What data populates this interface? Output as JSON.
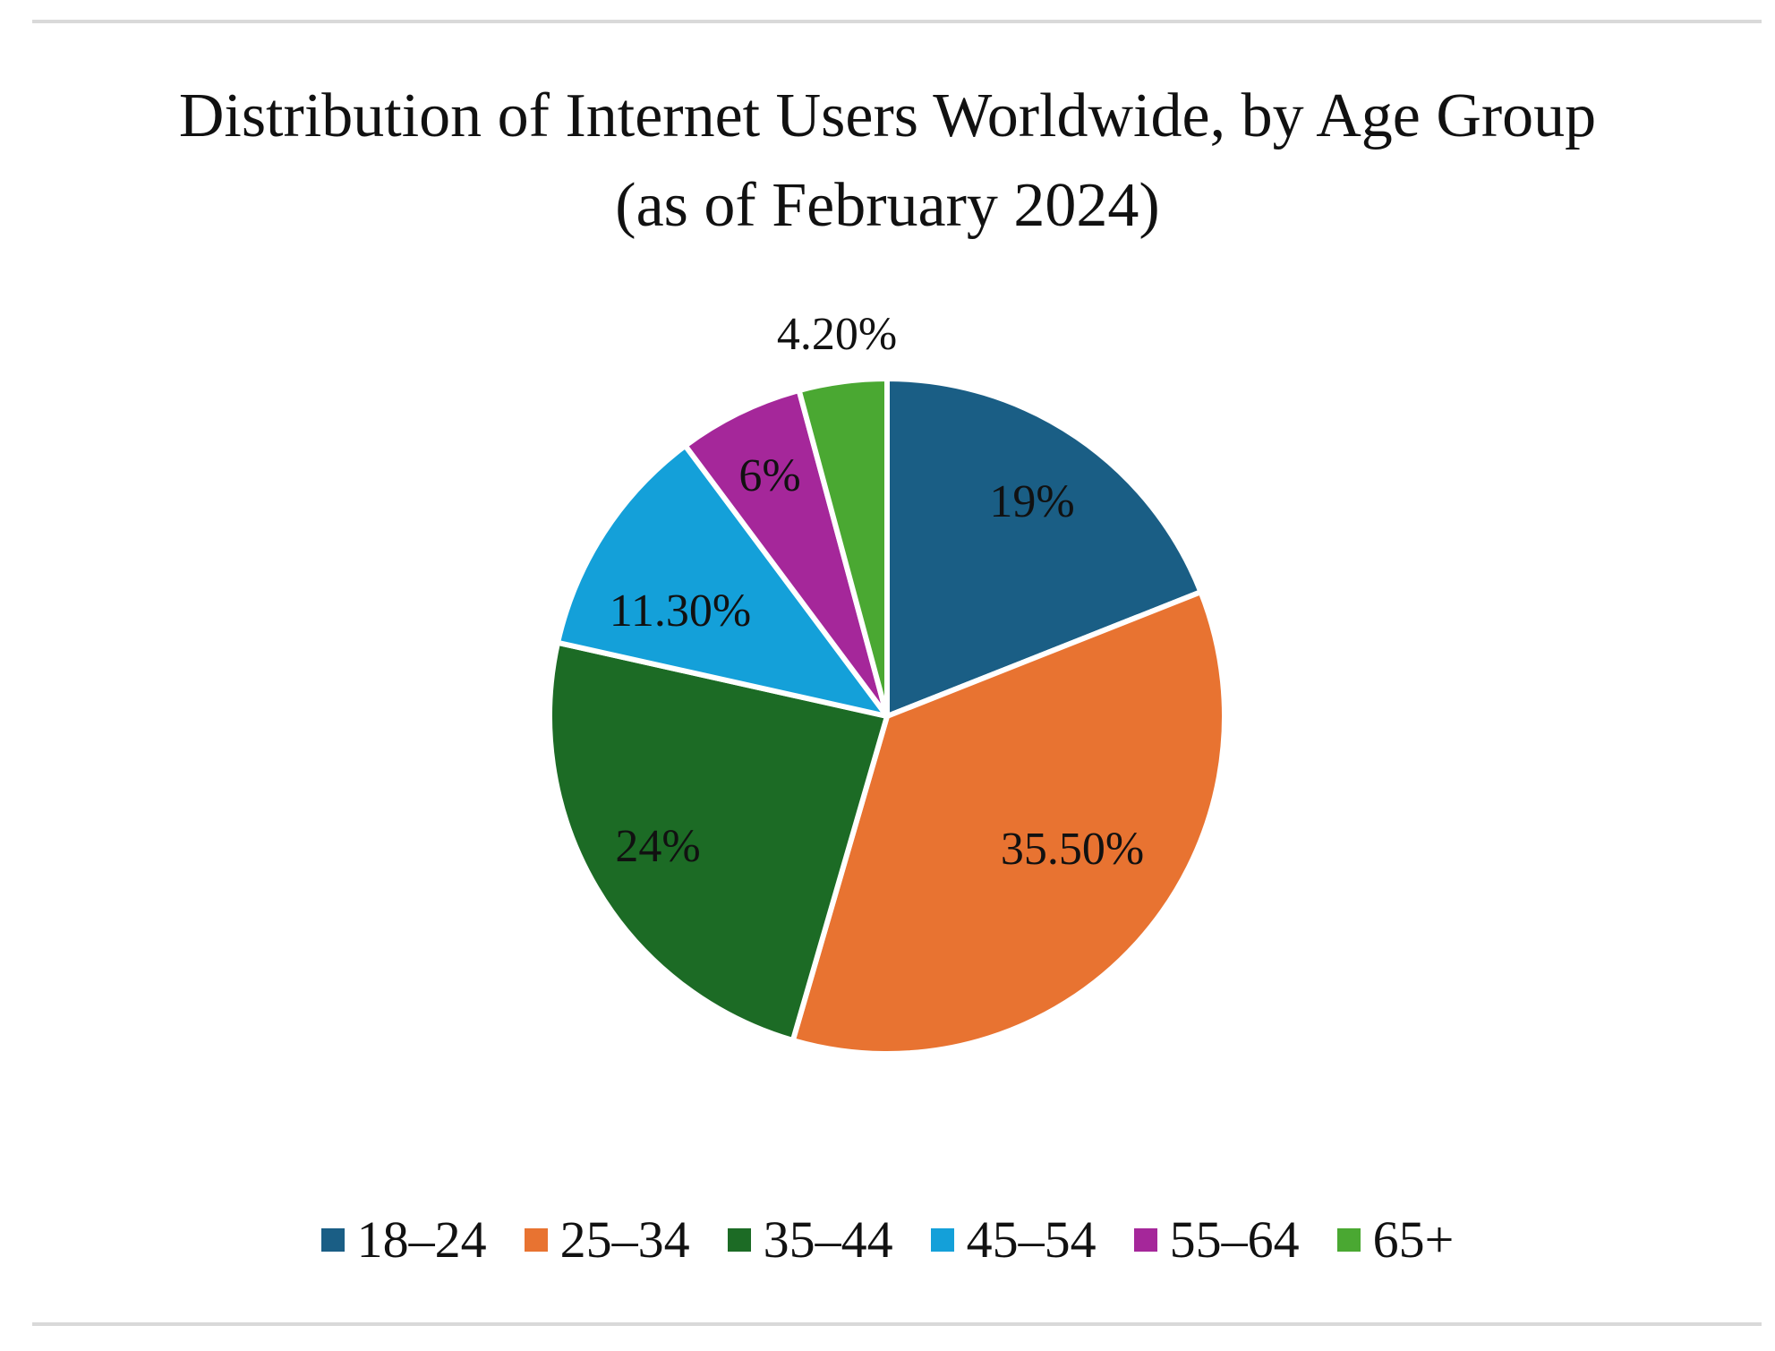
{
  "chart_data": {
    "type": "pie",
    "title_line1": "Distribution of Internet Users Worldwide,  by Age Group",
    "title_line2": "(as of February 2024)",
    "legend_position": "bottom",
    "slices": [
      {
        "category": "18–24",
        "value": 19,
        "label": "19%",
        "color": "#1a5e85",
        "label_placement": "inside"
      },
      {
        "category": "25–34",
        "value": 35.5,
        "label": "35.50%",
        "color": "#e87331",
        "label_placement": "inside"
      },
      {
        "category": "35–44",
        "value": 24,
        "label": "24%",
        "color": "#1c6b25",
        "label_placement": "inside"
      },
      {
        "category": "45–54",
        "value": 11.3,
        "label": "11.30%",
        "color": "#14a0d9",
        "label_placement": "inside"
      },
      {
        "category": "55–64",
        "value": 6,
        "label": "6%",
        "color": "#a5279a",
        "label_placement": "inside"
      },
      {
        "category": "65+",
        "value": 4.2,
        "label": "4.20%",
        "color": "#4aa832",
        "label_placement": "outside"
      }
    ]
  }
}
